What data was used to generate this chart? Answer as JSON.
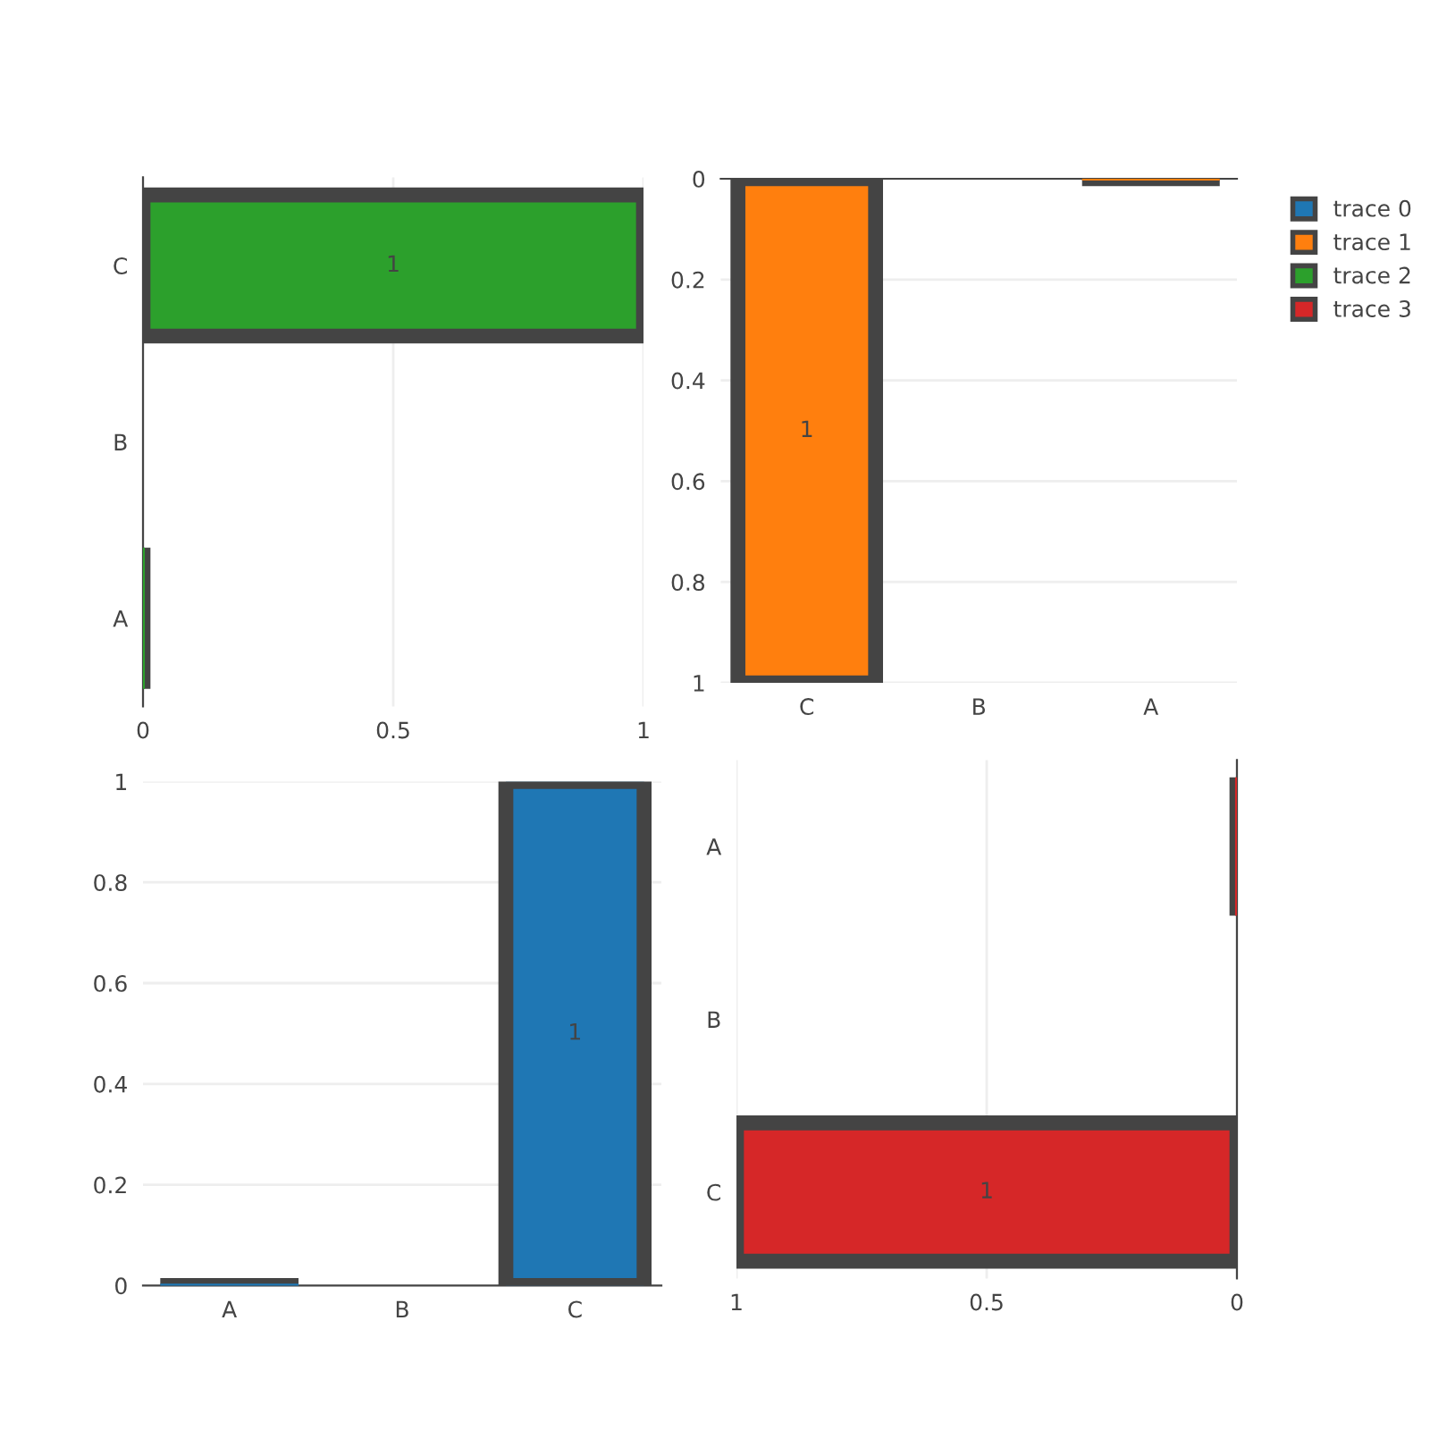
{
  "chart_data": [
    {
      "type": "bar",
      "orientation": "horizontal",
      "categories": [
        "C",
        "B",
        "A"
      ],
      "series": [
        {
          "name": "trace 2",
          "color": "#2ca02c",
          "values": [
            1,
            null,
            0
          ],
          "value_labels": [
            "1",
            null,
            null
          ]
        }
      ],
      "xlim": [
        0,
        1
      ],
      "xticks": [
        0,
        0.5,
        1
      ],
      "grid": "x"
    },
    {
      "type": "bar",
      "categories": [
        "C",
        "B",
        "A"
      ],
      "series": [
        {
          "name": "trace 1",
          "color": "#ff7f0e",
          "values": [
            1,
            null,
            0
          ],
          "value_labels": [
            "1",
            null,
            null
          ]
        }
      ],
      "ylim": [
        1,
        0
      ],
      "yticks": [
        0,
        0.2,
        0.4,
        0.6,
        0.8,
        1
      ],
      "grid": "y",
      "legend": "right"
    },
    {
      "type": "bar",
      "categories": [
        "A",
        "B",
        "C"
      ],
      "series": [
        {
          "name": "trace 0",
          "color": "#1f77b4",
          "values": [
            0,
            null,
            1
          ],
          "value_labels": [
            null,
            null,
            "1"
          ]
        }
      ],
      "ylim": [
        0,
        1
      ],
      "yticks": [
        0,
        0.2,
        0.4,
        0.6,
        0.8,
        1
      ],
      "grid": "y"
    },
    {
      "type": "bar",
      "orientation": "horizontal",
      "categories": [
        "A",
        "B",
        "C"
      ],
      "series": [
        {
          "name": "trace 3",
          "color": "#d62728",
          "values": [
            0,
            null,
            1
          ],
          "value_labels": [
            null,
            null,
            "1"
          ]
        }
      ],
      "xlim": [
        1,
        0
      ],
      "xticks": [
        1,
        0.5,
        0
      ],
      "grid": "x"
    }
  ]
}
